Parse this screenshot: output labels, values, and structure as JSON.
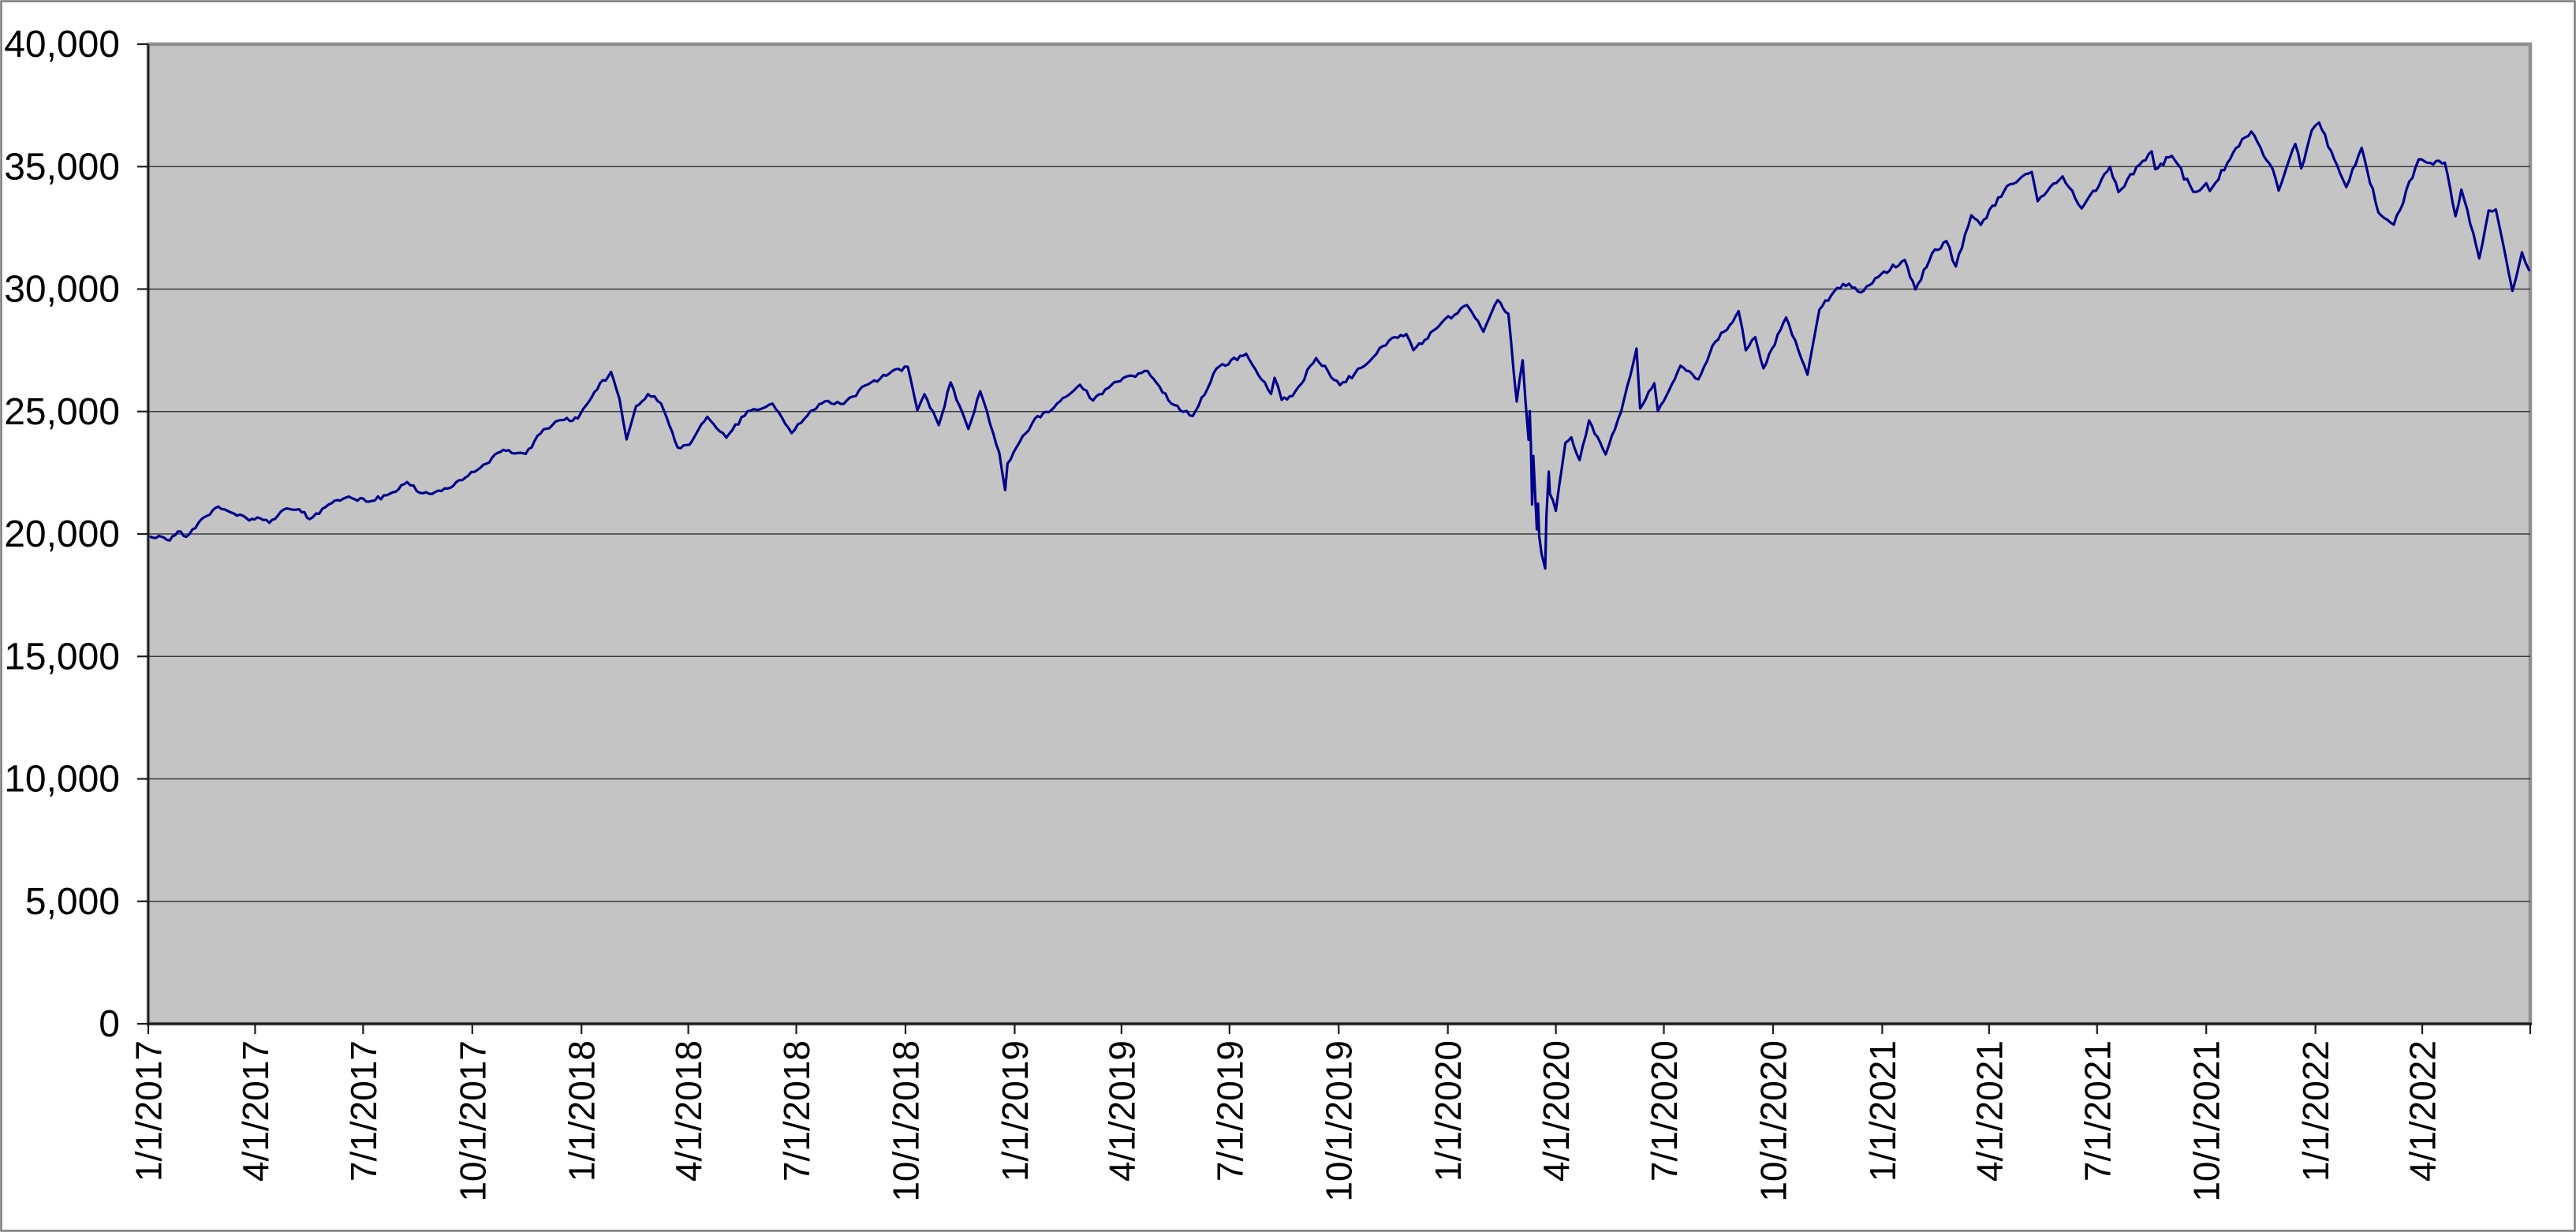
{
  "chart_data": {
    "type": "line",
    "title": "",
    "legend": "none",
    "grid": "horizontal",
    "plot_bg": "#c4c4c4",
    "colors": {
      "line": "#01018c",
      "plot_bg": "#c4c4c4",
      "plot_border": "#8f8f8f",
      "grid": "#3a3a3a",
      "axis": "#1c1c1c",
      "text": "#000000",
      "outer_border": "#787878",
      "page_bg": "#ffffff"
    },
    "ylim": [
      0,
      40000
    ],
    "y_tick_step": 5000,
    "y_tick_labels": [
      "0",
      "5,000",
      "10,000",
      "15,000",
      "20,000",
      "25,000",
      "30,000",
      "35,000",
      "40,000"
    ],
    "xlim": [
      "1/1/2017",
      "7/1/2022"
    ],
    "x_tick_labels": [
      "1/1/2017",
      "4/1/2017",
      "7/1/2017",
      "10/1/2017",
      "1/1/2018",
      "4/1/2018",
      "7/1/2018",
      "10/1/2018",
      "1/1/2019",
      "4/1/2019",
      "7/1/2019",
      "10/1/2019",
      "1/1/2020",
      "4/1/2020",
      "7/1/2020",
      "10/1/2020",
      "1/1/2021",
      "4/1/2021",
      "7/1/2021",
      "10/1/2021",
      "1/1/2022",
      "4/1/2022"
    ],
    "unlabeled_edge_tick": "7/1/2022",
    "points": [
      [
        "1/3/2017",
        19881
      ],
      [
        "1/12/2017",
        19891
      ],
      [
        "1/19/2017",
        19732
      ],
      [
        "1/26/2017",
        20101
      ],
      [
        "2/2/2017",
        19885
      ],
      [
        "2/15/2017",
        20612
      ],
      [
        "3/1/2017",
        21116
      ],
      [
        "3/14/2017",
        20837
      ],
      [
        "3/27/2017",
        20551
      ],
      [
        "4/5/2017",
        20648
      ],
      [
        "4/13/2017",
        20453
      ],
      [
        "4/25/2017",
        20996
      ],
      [
        "5/8/2017",
        21012
      ],
      [
        "5/17/2017",
        20607
      ],
      [
        "6/2/2017",
        21206
      ],
      [
        "6/19/2017",
        21529
      ],
      [
        "7/6/2017",
        21320
      ],
      [
        "7/21/2017",
        21580
      ],
      [
        "8/7/2017",
        22118
      ],
      [
        "8/18/2017",
        21675
      ],
      [
        "9/5/2017",
        21753
      ],
      [
        "9/25/2017",
        22296
      ],
      [
        "10/13/2017",
        22872
      ],
      [
        "10/27/2017",
        23434
      ],
      [
        "11/15/2017",
        23271
      ],
      [
        "11/30/2017",
        24272
      ],
      [
        "12/15/2017",
        24651
      ],
      [
        "12/29/2017",
        24719
      ],
      [
        "1/12/2018",
        25803
      ],
      [
        "1/26/2018",
        26617
      ],
      [
        "2/2/2018",
        25521
      ],
      [
        "2/8/2018",
        23860
      ],
      [
        "2/16/2018",
        25219
      ],
      [
        "2/26/2018",
        25709
      ],
      [
        "3/9/2018",
        25336
      ],
      [
        "3/23/2018",
        23533
      ],
      [
        "4/2/2018",
        23644
      ],
      [
        "4/17/2018",
        24786
      ],
      [
        "5/3/2018",
        23931
      ],
      [
        "5/21/2018",
        25013
      ],
      [
        "6/11/2018",
        25322
      ],
      [
        "6/27/2018",
        24118
      ],
      [
        "7/13/2018",
        25019
      ],
      [
        "7/25/2018",
        25414
      ],
      [
        "8/10/2018",
        25313
      ],
      [
        "8/28/2018",
        26064
      ],
      [
        "9/20/2018",
        26657
      ],
      [
        "10/3/2018",
        26828
      ],
      [
        "10/11/2018",
        25053
      ],
      [
        "10/17/2018",
        25707
      ],
      [
        "10/29/2018",
        24443
      ],
      [
        "11/8/2018",
        26191
      ],
      [
        "11/23/2018",
        24286
      ],
      [
        "12/3/2018",
        25826
      ],
      [
        "12/14/2018",
        24101
      ],
      [
        "12/19/2018",
        23324
      ],
      [
        "12/24/2018",
        21792
      ],
      [
        "12/26/2018",
        22878
      ],
      [
        "12/31/2018",
        23327
      ],
      [
        "1/18/2019",
        24706
      ],
      [
        "2/1/2019",
        25064
      ],
      [
        "2/25/2019",
        26092
      ],
      [
        "3/8/2019",
        25450
      ],
      [
        "3/21/2019",
        25963
      ],
      [
        "4/5/2019",
        26425
      ],
      [
        "4/23/2019",
        26656
      ],
      [
        "5/13/2019",
        25325
      ],
      [
        "5/31/2019",
        24815
      ],
      [
        "6/20/2019",
        26753
      ],
      [
        "7/15/2019",
        27359
      ],
      [
        "8/5/2019",
        25718
      ],
      [
        "8/8/2019",
        26378
      ],
      [
        "8/14/2019",
        25479
      ],
      [
        "8/23/2019",
        25629
      ],
      [
        "9/12/2019",
        27182
      ],
      [
        "10/2/2019",
        26078
      ],
      [
        "10/25/2019",
        26958
      ],
      [
        "11/15/2019",
        28005
      ],
      [
        "11/27/2019",
        28164
      ],
      [
        "12/3/2019",
        27503
      ],
      [
        "12/27/2019",
        28645
      ],
      [
        "1/17/2020",
        29348
      ],
      [
        "1/31/2020",
        28256
      ],
      [
        "2/12/2020",
        29551
      ],
      [
        "2/21/2020",
        28992
      ],
      [
        "2/28/2020",
        25409
      ],
      [
        "3/4/2020",
        27091
      ],
      [
        "3/9/2020",
        23851
      ],
      [
        "3/10/2020",
        25018
      ],
      [
        "3/11/2020",
        23553
      ],
      [
        "3/12/2020",
        21200
      ],
      [
        "3/13/2020",
        23186
      ],
      [
        "3/16/2020",
        20188
      ],
      [
        "3/17/2020",
        21237
      ],
      [
        "3/18/2020",
        19899
      ],
      [
        "3/20/2020",
        19174
      ],
      [
        "3/23/2020",
        18592
      ],
      [
        "3/24/2020",
        20705
      ],
      [
        "3/26/2020",
        22552
      ],
      [
        "3/27/2020",
        21637
      ],
      [
        "4/1/2020",
        20944
      ],
      [
        "4/9/2020",
        23719
      ],
      [
        "4/14/2020",
        23949
      ],
      [
        "4/21/2020",
        23019
      ],
      [
        "4/29/2020",
        24634
      ],
      [
        "5/13/2020",
        23248
      ],
      [
        "5/26/2020",
        24995
      ],
      [
        "6/8/2020",
        27572
      ],
      [
        "6/11/2020",
        25128
      ],
      [
        "6/23/2020",
        26156
      ],
      [
        "6/26/2020",
        25016
      ],
      [
        "7/15/2020",
        26870
      ],
      [
        "7/30/2020",
        26313
      ],
      [
        "8/11/2020",
        27687
      ],
      [
        "8/28/2020",
        28654
      ],
      [
        "9/2/2020",
        29101
      ],
      [
        "9/8/2020",
        27501
      ],
      [
        "9/16/2020",
        28032
      ],
      [
        "9/23/2020",
        26763
      ],
      [
        "10/12/2020",
        28838
      ],
      [
        "10/30/2020",
        26502
      ],
      [
        "11/9/2020",
        29158
      ],
      [
        "11/24/2020",
        30046
      ],
      [
        "12/4/2020",
        30218
      ],
      [
        "12/14/2020",
        29862
      ],
      [
        "12/31/2020",
        30606
      ],
      [
        "1/20/2021",
        31188
      ],
      [
        "1/29/2021",
        29983
      ],
      [
        "2/12/2021",
        31458
      ],
      [
        "2/24/2021",
        31962
      ],
      [
        "3/4/2021",
        30924
      ],
      [
        "3/17/2021",
        33015
      ],
      [
        "3/25/2021",
        32619
      ],
      [
        "4/16/2021",
        34201
      ],
      [
        "5/7/2021",
        34778
      ],
      [
        "5/12/2021",
        33588
      ],
      [
        "6/2/2021",
        34600
      ],
      [
        "6/18/2021",
        33290
      ],
      [
        "7/12/2021",
        34996
      ],
      [
        "7/19/2021",
        33962
      ],
      [
        "8/16/2021",
        35625
      ],
      [
        "8/19/2021",
        34894
      ],
      [
        "9/2/2021",
        35444
      ],
      [
        "9/20/2021",
        33970
      ],
      [
        "10/1/2021",
        34326
      ],
      [
        "10/4/2021",
        34003
      ],
      [
        "10/26/2021",
        35757
      ],
      [
        "11/8/2021",
        36432
      ],
      [
        "11/26/2021",
        34899
      ],
      [
        "12/1/2021",
        34022
      ],
      [
        "12/15/2021",
        35927
      ],
      [
        "12/20/2021",
        34932
      ],
      [
        "12/29/2021",
        36489
      ],
      [
        "1/4/2022",
        36800
      ],
      [
        "1/27/2022",
        34160
      ],
      [
        "2/9/2022",
        35768
      ],
      [
        "2/23/2022",
        33132
      ],
      [
        "3/8/2022",
        32632
      ],
      [
        "3/29/2022",
        35294
      ],
      [
        "4/20/2022",
        35161
      ],
      [
        "4/29/2022",
        32977
      ],
      [
        "5/4/2022",
        34061
      ],
      [
        "5/19/2022",
        31253
      ],
      [
        "5/27/2022",
        33213
      ],
      [
        "6/2/2022",
        33248
      ],
      [
        "6/10/2022",
        31393
      ],
      [
        "6/16/2022",
        29927
      ],
      [
        "6/24/2022",
        31500
      ],
      [
        "6/30/2022",
        30775
      ]
    ]
  }
}
